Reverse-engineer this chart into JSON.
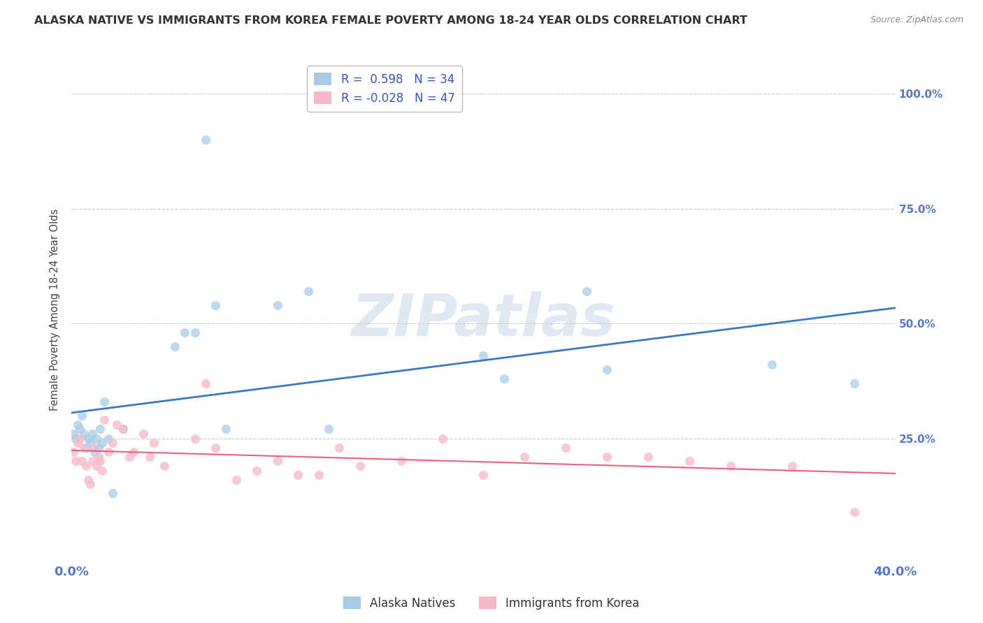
{
  "title": "ALASKA NATIVE VS IMMIGRANTS FROM KOREA FEMALE POVERTY AMONG 18-24 YEAR OLDS CORRELATION CHART",
  "source": "Source: ZipAtlas.com",
  "ylabel": "Female Poverty Among 18-24 Year Olds",
  "xlim": [
    0.0,
    0.4
  ],
  "ylim": [
    -0.02,
    1.08
  ],
  "blue_color": "#a8cce8",
  "pink_color": "#f5b8c8",
  "blue_line_color": "#3a7abf",
  "pink_line_color": "#e8607a",
  "R_blue": 0.598,
  "N_blue": 34,
  "R_pink": -0.028,
  "N_pink": 47,
  "watermark": "ZIPatlas",
  "blue_scatter_x": [
    0.001,
    0.002,
    0.003,
    0.004,
    0.005,
    0.006,
    0.007,
    0.008,
    0.009,
    0.01,
    0.011,
    0.012,
    0.013,
    0.014,
    0.015,
    0.016,
    0.018,
    0.02,
    0.025,
    0.05,
    0.055,
    0.06,
    0.065,
    0.07,
    0.075,
    0.1,
    0.115,
    0.125,
    0.2,
    0.21,
    0.25,
    0.26,
    0.34,
    0.38
  ],
  "blue_scatter_y": [
    0.26,
    0.25,
    0.28,
    0.27,
    0.3,
    0.26,
    0.23,
    0.25,
    0.24,
    0.26,
    0.22,
    0.25,
    0.23,
    0.27,
    0.24,
    0.33,
    0.25,
    0.13,
    0.27,
    0.45,
    0.48,
    0.48,
    0.9,
    0.54,
    0.27,
    0.54,
    0.57,
    0.27,
    0.43,
    0.38,
    0.57,
    0.4,
    0.41,
    0.37
  ],
  "pink_scatter_x": [
    0.001,
    0.002,
    0.003,
    0.004,
    0.005,
    0.006,
    0.007,
    0.008,
    0.009,
    0.01,
    0.011,
    0.012,
    0.013,
    0.014,
    0.015,
    0.016,
    0.018,
    0.02,
    0.022,
    0.025,
    0.028,
    0.03,
    0.035,
    0.038,
    0.04,
    0.045,
    0.06,
    0.065,
    0.07,
    0.08,
    0.09,
    0.1,
    0.11,
    0.12,
    0.13,
    0.14,
    0.16,
    0.18,
    0.2,
    0.22,
    0.24,
    0.26,
    0.28,
    0.3,
    0.32,
    0.35,
    0.38
  ],
  "pink_scatter_y": [
    0.22,
    0.2,
    0.24,
    0.25,
    0.2,
    0.23,
    0.19,
    0.16,
    0.15,
    0.2,
    0.23,
    0.19,
    0.21,
    0.2,
    0.18,
    0.29,
    0.22,
    0.24,
    0.28,
    0.27,
    0.21,
    0.22,
    0.26,
    0.21,
    0.24,
    0.19,
    0.25,
    0.37,
    0.23,
    0.16,
    0.18,
    0.2,
    0.17,
    0.17,
    0.23,
    0.19,
    0.2,
    0.25,
    0.17,
    0.21,
    0.23,
    0.21,
    0.21,
    0.2,
    0.19,
    0.19,
    0.09
  ],
  "grid_color": "#cccccc",
  "background_color": "#ffffff",
  "title_color": "#333333",
  "axis_label_color": "#5577cc",
  "title_fontsize": 11.5,
  "legend_fontsize": 11,
  "marker_size": 90
}
